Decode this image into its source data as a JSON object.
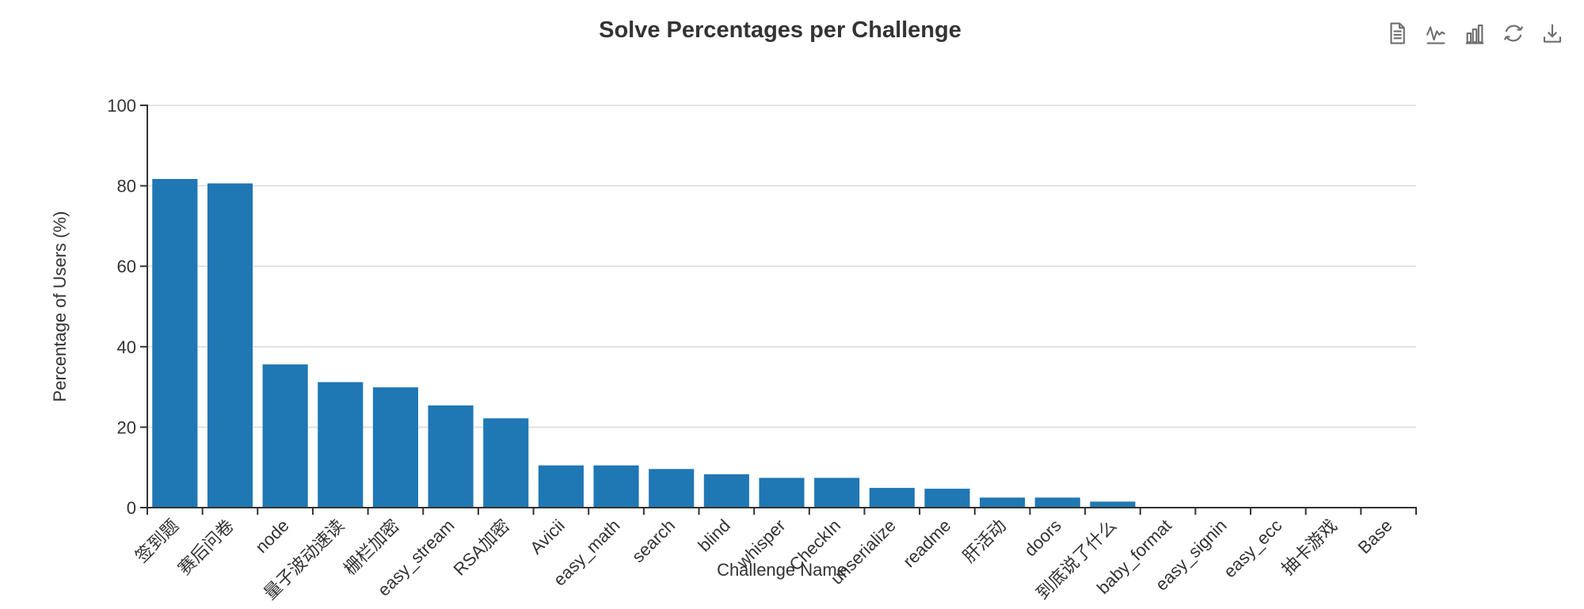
{
  "header": {
    "title": "Solve Percentages per Challenge"
  },
  "toolbar": {
    "icons": [
      {
        "name": "data-view-icon"
      },
      {
        "name": "line-chart-switch-icon"
      },
      {
        "name": "bar-chart-switch-icon"
      },
      {
        "name": "restore-icon"
      },
      {
        "name": "download-icon"
      }
    ]
  },
  "colors": {
    "bar": "#1f77b4",
    "axis": "#333333",
    "grid": "#dcdcdc",
    "text": "#333333",
    "title": "#333333",
    "toolbox_icon": "#6e6e6e",
    "background": "#ffffff"
  },
  "chart_data": {
    "type": "bar",
    "title": "Solve Percentages per Challenge",
    "xlabel": "Challenge Name",
    "ylabel": "Percentage of Users (%)",
    "ylim": [
      0,
      100
    ],
    "yticks": [
      0,
      20,
      40,
      60,
      80,
      100
    ],
    "grid": true,
    "legend": "none",
    "x_label_rotation_deg": 45,
    "categories": [
      "签到题",
      "赛后问卷",
      "node",
      "量子波动速读",
      "栅栏加密",
      "easy_stream",
      "RSA加密",
      "Avicii",
      "easy_math",
      "search",
      "blind",
      "whisper",
      "CheckIn",
      "unserialize",
      "readme",
      "肝活动",
      "doors",
      "到底说了什么",
      "baby_format",
      "easy_signin",
      "easy_ecc",
      "抽卡游戏",
      "Base"
    ],
    "values": [
      81.7,
      80.6,
      35.6,
      31.2,
      29.9,
      25.4,
      22.2,
      10.5,
      10.5,
      9.6,
      8.3,
      7.4,
      7.4,
      4.9,
      4.7,
      2.5,
      2.5,
      1.5,
      0,
      0,
      0,
      0,
      0
    ]
  }
}
